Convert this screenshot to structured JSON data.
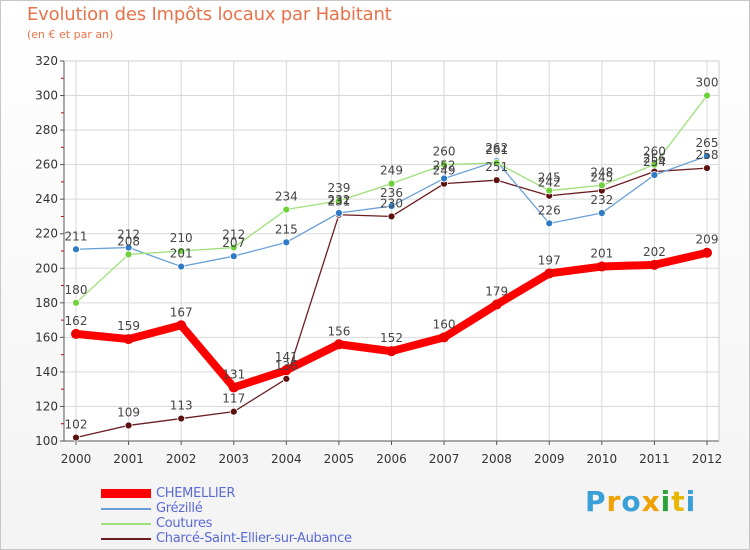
{
  "chart_data": {
    "type": "line",
    "title": "Evolution des Impôts locaux par Habitant",
    "subtitle": "(en € et par an)",
    "xlabel": "",
    "ylabel": "",
    "x": [
      "2000",
      "2001",
      "2002",
      "2003",
      "2004",
      "2005",
      "2006",
      "2007",
      "2008",
      "2009",
      "2010",
      "2011",
      "2012"
    ],
    "ylim": [
      100,
      320
    ],
    "yticks": [
      "100",
      "120",
      "140",
      "160",
      "180",
      "200",
      "220",
      "240",
      "260",
      "280",
      "300",
      "320"
    ],
    "grid": true,
    "legend_position": "bottom-left",
    "series": [
      {
        "name": "Charcé-Saint-Ellier-sur-Aubance",
        "color": "#6b1d22",
        "marker": "#5c1010",
        "values": [
          102,
          109,
          113,
          117,
          136,
          231,
          230,
          249,
          251,
          242,
          245,
          256,
          258
        ],
        "labels": [
          "102",
          "109",
          "113",
          "117",
          "136",
          "231",
          "230",
          "249",
          "251",
          "242",
          "245",
          "256",
          "258"
        ]
      },
      {
        "name": "Grézillé",
        "color": "#6aa0d8",
        "marker": "#2e7bc4",
        "values": [
          211,
          212,
          201,
          207,
          215,
          232,
          236,
          252,
          262,
          226,
          232,
          254,
          265
        ],
        "labels": [
          "211",
          "212",
          "201",
          "207",
          "215",
          "232",
          "236",
          "252",
          "262",
          "226",
          "232",
          "254",
          "265"
        ]
      },
      {
        "name": "Coutures",
        "color": "#9ee07a",
        "marker": "#6fd13a",
        "values": [
          180,
          208,
          210,
          212,
          234,
          239,
          249,
          260,
          261,
          245,
          248,
          260,
          300
        ],
        "labels": [
          "180",
          "208",
          "210",
          "212",
          "234",
          "239",
          "249",
          "260",
          "261",
          "245",
          "248",
          "260",
          "300"
        ]
      },
      {
        "name": "CHEMELLIER",
        "color": "#ff0000",
        "marker": "#ee0000",
        "values": [
          162,
          159,
          167,
          131,
          141,
          156,
          152,
          160,
          179,
          197,
          201,
          202,
          209
        ],
        "labels": [
          "162",
          "159",
          "167",
          "131",
          "141",
          "156",
          "152",
          "160",
          "179",
          "197",
          "201",
          "202",
          "209"
        ]
      }
    ]
  },
  "legend": {
    "items": [
      {
        "label": "CHEMELLIER",
        "color": "#ff0000"
      },
      {
        "label": "Grézillé",
        "color": "#6aa0d8"
      },
      {
        "label": "Coutures",
        "color": "#9ee07a"
      },
      {
        "label": "Charcé-Saint-Ellier-sur-Aubance",
        "color": "#6b1d22"
      }
    ]
  },
  "brand": {
    "letters": [
      "P",
      "r",
      "o",
      "x",
      "i",
      "t",
      "i"
    ],
    "colors": [
      "#3aa0d8",
      "#f0a000",
      "#3aa0d8",
      "#f0a000",
      "#2ba33a",
      "#e8b800",
      "#3aa0d8"
    ]
  }
}
